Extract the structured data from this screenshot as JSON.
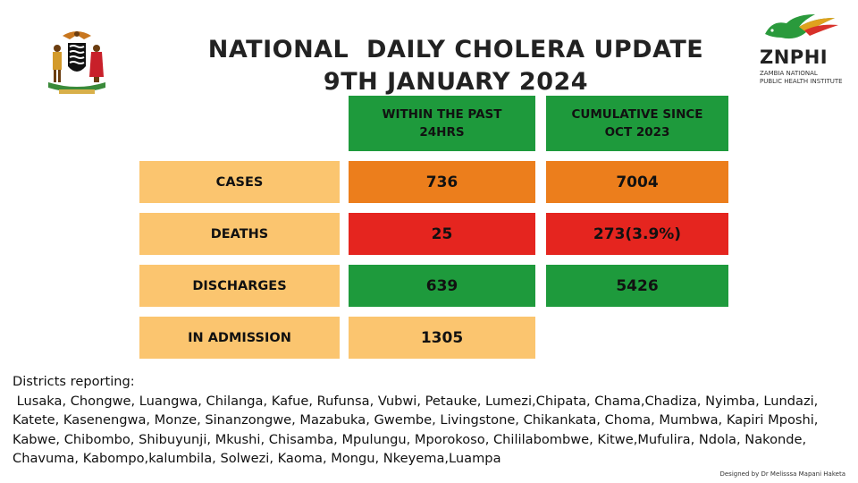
{
  "title": {
    "line1": "NATIONAL  DAILY CHOLERA UPDATE",
    "line2": "9TH JANUARY 2024"
  },
  "logo": {
    "name": "ZNPHI",
    "subtitle_line1": "ZAMBIA NATIONAL",
    "subtitle_line2": "PUBLIC HEALTH INSTITUTE"
  },
  "table": {
    "headers": {
      "past24": "WITHIN THE PAST 24HRS",
      "cumulative": "CUMULATIVE SINCE OCT 2023"
    },
    "rows": [
      {
        "label": "CASES",
        "past24": "736",
        "cumulative": "7004"
      },
      {
        "label": "DEATHS",
        "past24": "25",
        "cumulative": "273(3.9%)"
      },
      {
        "label": "DISCHARGES",
        "past24": "639",
        "cumulative": "5426"
      },
      {
        "label": "IN ADMISSION",
        "past24": "1305"
      }
    ]
  },
  "districts": {
    "heading": "Districts reporting:",
    "list": " Lusaka, Chongwe, Luangwa, Chilanga, Kafue, Rufunsa, Vubwi, Petauke, Lumezi,Chipata, Chama,Chadiza, Nyimba, Lundazi, Katete, Kasenengwa, Monze, Sinanzongwe, Mazabuka, Gwembe, Livingstone, Chikankata, Choma, Mumbwa, Kapiri Mposhi, Kabwe, Chibombo, Shibuyunji, Mkushi, Chisamba, Mpulungu, Mporokoso, Chililabombwe, Kitwe,Mufulira, Ndola, Nakonde, Chavuma, Kabompo,kalumbila, Solwezi, Kaoma, Mongu, Nkeyema,Luampa"
  },
  "credit": "Designed by Dr Melisssa Mapani Haketa",
  "colors": {
    "header_green": "#1e9a3c",
    "label_peach": "#fbc56f",
    "cases_orange": "#ec7e1c",
    "deaths_red": "#e5251f",
    "discharges_green": "#1e9a3c"
  },
  "icons": {
    "coat_of_arms": "zambia-coat-of-arms-icon",
    "znphi_bird": "znphi-bird-icon"
  }
}
